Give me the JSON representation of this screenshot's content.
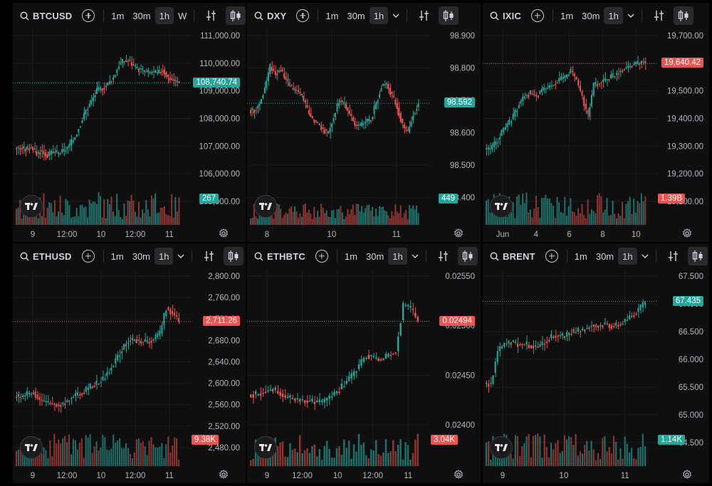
{
  "colors": {
    "up": "#26a69a",
    "down": "#ef5350",
    "upVol": "#1f6f6a",
    "downVol": "#8c3532",
    "panel": "#0f0f10",
    "grid": "#1c1c1f"
  },
  "panels": [
    {
      "symbol": "BTCUSD",
      "intervals": [
        "1m",
        "30m",
        "1h",
        "W"
      ],
      "active": "1h",
      "yticks": [
        "111,000.00",
        "110,000.00",
        "109,000.00",
        "108,000.00",
        "107,000.00",
        "106,000.00",
        "105,000.00"
      ],
      "xticks": [
        "9",
        "12:00",
        "10",
        "12:00",
        "11"
      ],
      "price": "108,740.74",
      "priceColor": "up",
      "vol": "267",
      "volColor": "up",
      "trend": [
        0.26,
        0.25,
        0.27,
        0.22,
        0.24,
        0.2,
        0.23,
        0.22,
        0.24,
        0.28,
        0.35,
        0.45,
        0.55,
        0.62,
        0.7,
        0.72,
        0.75,
        0.8,
        0.9,
        0.93,
        0.92,
        0.87,
        0.86,
        0.84,
        0.84,
        0.83,
        0.86,
        0.8,
        0.78,
        0.76
      ]
    },
    {
      "symbol": "DXY",
      "intervals": [
        "1m",
        "30m",
        "1h"
      ],
      "active": "1h",
      "yticks": [
        "98.900",
        "98.800",
        "98.700",
        "98.600",
        "98.500",
        "98.400"
      ],
      "xticks": [
        "8",
        "10",
        "11"
      ],
      "price": "98.592",
      "priceColor": "up",
      "vol": "449",
      "volColor": "up",
      "trend": [
        0.55,
        0.6,
        0.72,
        0.88,
        0.83,
        0.86,
        0.78,
        0.72,
        0.7,
        0.66,
        0.55,
        0.48,
        0.45,
        0.4,
        0.38,
        0.5,
        0.62,
        0.6,
        0.52,
        0.44,
        0.43,
        0.46,
        0.48,
        0.6,
        0.74,
        0.75,
        0.66,
        0.57,
        0.44,
        0.38,
        0.52,
        0.6
      ]
    },
    {
      "symbol": "IXIC",
      "intervals": [
        "1m",
        "30m",
        "1h"
      ],
      "active": "1h",
      "yticks": [
        "19,700.00",
        "19,600.00",
        "19,500.00",
        "19,400.00",
        "19,300.00",
        "19,200.00",
        "19,100.00"
      ],
      "xticks": [
        "Jun",
        "4",
        "6",
        "8",
        "10"
      ],
      "price": "19,640.42",
      "priceColor": "down",
      "vol": "1.39B",
      "volColor": "down",
      "trend": [
        0.25,
        0.3,
        0.38,
        0.44,
        0.5,
        0.6,
        0.66,
        0.68,
        0.66,
        0.7,
        0.72,
        0.75,
        0.78,
        0.8,
        0.85,
        0.78,
        0.65,
        0.5,
        0.74,
        0.76,
        0.78,
        0.8,
        0.83,
        0.86,
        0.88,
        0.9,
        0.91,
        0.93
      ]
    },
    {
      "symbol": "ETHUSD",
      "intervals": [
        "1m",
        "30m",
        "1h"
      ],
      "active": "1h",
      "yticks": [
        "2,800.00",
        "2,760.00",
        "2,720.00",
        "2,680.00",
        "2,640.00",
        "2,600.00",
        "2,560.00",
        "2,520.00",
        "2,480.00"
      ],
      "xticks": [
        "9",
        "12:00",
        "10",
        "12:00",
        "11"
      ],
      "price": "2,711.26",
      "priceColor": "down",
      "vol": "9.38K",
      "volColor": "down",
      "trend": [
        0.2,
        0.22,
        0.24,
        0.18,
        0.16,
        0.15,
        0.14,
        0.16,
        0.2,
        0.22,
        0.24,
        0.28,
        0.3,
        0.34,
        0.4,
        0.48,
        0.56,
        0.63,
        0.64,
        0.62,
        0.62,
        0.64,
        0.68,
        0.88,
        0.84,
        0.78
      ]
    },
    {
      "symbol": "ETHBTC",
      "intervals": [
        "1m",
        "30m",
        "1h"
      ],
      "active": "1h",
      "yticks": [
        "0.02550",
        "0.02500",
        "0.02450",
        "0.02400"
      ],
      "xticks": [
        "9",
        "12:00",
        "10",
        "12:00",
        "11"
      ],
      "price": "0.02494",
      "priceColor": "down",
      "vol": "3.04K",
      "volColor": "down",
      "trend": [
        0.22,
        0.24,
        0.26,
        0.24,
        0.2,
        0.19,
        0.18,
        0.17,
        0.16,
        0.16,
        0.2,
        0.24,
        0.3,
        0.36,
        0.44,
        0.52,
        0.5,
        0.48,
        0.52,
        0.55,
        0.9,
        0.87,
        0.78
      ]
    },
    {
      "symbol": "BRENT",
      "intervals": [
        "1m",
        "30m",
        "1h"
      ],
      "active": "1h",
      "yticks": [
        "67.500",
        "67.000",
        "66.500",
        "66.000",
        "65.500",
        "65.000",
        "64.500"
      ],
      "xticks": [
        "9",
        "10",
        "11"
      ],
      "price": "67.435",
      "priceColor": "up",
      "vol": "1.14K",
      "volColor": "up",
      "trend": [
        0.3,
        0.55,
        0.6,
        0.62,
        0.6,
        0.6,
        0.59,
        0.58,
        0.62,
        0.66,
        0.67,
        0.66,
        0.69,
        0.7,
        0.72,
        0.75,
        0.74,
        0.76,
        0.74,
        0.75,
        0.78,
        0.82,
        0.86,
        0.92
      ]
    }
  ]
}
